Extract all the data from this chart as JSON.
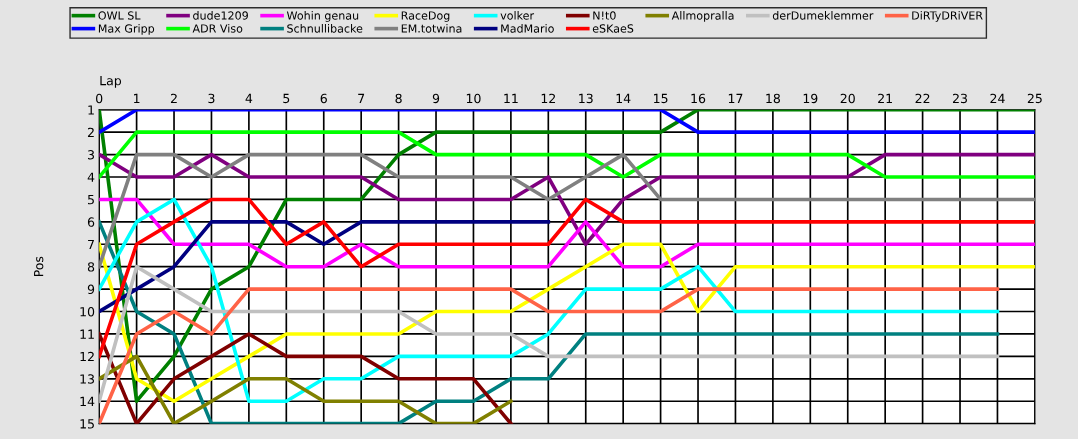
{
  "chart_data": {
    "type": "line",
    "xlabel": "Lap",
    "ylabel": "Pos",
    "x": [
      0,
      1,
      2,
      3,
      4,
      5,
      6,
      7,
      8,
      9,
      10,
      11,
      12,
      13,
      14,
      15,
      16,
      17,
      18,
      19,
      20,
      21,
      22,
      23,
      24,
      25
    ],
    "xlim": [
      0,
      25
    ],
    "xticks": [
      0,
      1,
      2,
      3,
      4,
      5,
      6,
      7,
      8,
      9,
      10,
      11,
      12,
      13,
      14,
      15,
      16,
      17,
      18,
      19,
      20,
      21,
      22,
      23,
      24,
      25
    ],
    "ylim": [
      15,
      1
    ],
    "yticks": [
      1,
      2,
      3,
      4,
      5,
      6,
      7,
      8,
      9,
      10,
      11,
      12,
      13,
      14,
      15
    ],
    "grid": true,
    "legend": "top",
    "marker": "none",
    "line_style": "solid",
    "series": [
      {
        "name": "OWL SL",
        "color": "#008000",
        "values": [
          1,
          14,
          12,
          9,
          8,
          5,
          5,
          5,
          3,
          2,
          2,
          2,
          2,
          2,
          2,
          2,
          1,
          1,
          1,
          1,
          1,
          1,
          1,
          1,
          1,
          1
        ]
      },
      {
        "name": "Max Gripp",
        "color": "#0000ff",
        "values": [
          2,
          1,
          1,
          1,
          1,
          1,
          1,
          1,
          1,
          1,
          1,
          1,
          1,
          1,
          1,
          1,
          2,
          2,
          2,
          2,
          2,
          2,
          2,
          2,
          2,
          2
        ]
      },
      {
        "name": "dude1209",
        "color": "#800080",
        "values": [
          3,
          4,
          4,
          3,
          4,
          4,
          4,
          4,
          5,
          5,
          5,
          5,
          4,
          7,
          5,
          4,
          4,
          4,
          4,
          4,
          4,
          3,
          3,
          3,
          3,
          3
        ]
      },
      {
        "name": "ADR Viso",
        "color": "#00ff00",
        "values": [
          4,
          2,
          2,
          2,
          2,
          2,
          2,
          2,
          2,
          3,
          3,
          3,
          3,
          3,
          4,
          3,
          3,
          3,
          3,
          3,
          3,
          4,
          4,
          4,
          4,
          4
        ]
      },
      {
        "name": "Wohin genau",
        "color": "#ff00ff",
        "values": [
          5,
          5,
          7,
          7,
          7,
          8,
          8,
          7,
          8,
          8,
          8,
          8,
          8,
          6,
          8,
          8,
          7,
          7,
          7,
          7,
          7,
          7,
          7,
          7,
          7,
          7
        ]
      },
      {
        "name": "Schnullibacke",
        "color": "#008080",
        "values": [
          6,
          10,
          11,
          15,
          15,
          15,
          15,
          15,
          15,
          14,
          14,
          13,
          13,
          11,
          11,
          11,
          11,
          11,
          11,
          11,
          11,
          11,
          11,
          11,
          11,
          null
        ]
      },
      {
        "name": "RaceDog",
        "color": "#ffff00",
        "values": [
          7,
          13,
          14,
          13,
          12,
          11,
          11,
          11,
          11,
          10,
          10,
          10,
          9,
          8,
          7,
          7,
          10,
          8,
          8,
          8,
          8,
          8,
          8,
          8,
          8,
          8
        ]
      },
      {
        "name": "EM.totwina",
        "color": "#808080",
        "values": [
          8,
          3,
          3,
          4,
          3,
          3,
          3,
          3,
          4,
          4,
          4,
          4,
          5,
          4,
          3,
          5,
          5,
          5,
          5,
          5,
          5,
          5,
          5,
          5,
          5,
          5
        ]
      },
      {
        "name": "volker",
        "color": "#00ffff",
        "values": [
          9,
          6,
          5,
          8,
          14,
          14,
          13,
          13,
          12,
          12,
          12,
          12,
          11,
          9,
          9,
          9,
          8,
          10,
          10,
          10,
          10,
          10,
          10,
          10,
          10,
          null
        ]
      },
      {
        "name": "MadMario",
        "color": "#000080",
        "values": [
          10,
          9,
          8,
          6,
          6,
          6,
          7,
          6,
          6,
          6,
          6,
          6,
          6,
          null,
          null,
          null,
          null,
          null,
          null,
          null,
          null,
          null,
          null,
          null,
          null,
          null
        ]
      },
      {
        "name": "N!t0",
        "color": "#800000",
        "values": [
          11,
          15,
          13,
          12,
          11,
          12,
          12,
          12,
          13,
          13,
          13,
          15,
          null,
          null,
          null,
          null,
          null,
          null,
          null,
          null,
          null,
          null,
          null,
          null,
          null,
          null
        ]
      },
      {
        "name": "eSKaeS",
        "color": "#ff0000",
        "values": [
          12,
          7,
          6,
          5,
          5,
          7,
          6,
          8,
          7,
          7,
          7,
          7,
          7,
          5,
          6,
          6,
          6,
          6,
          6,
          6,
          6,
          6,
          6,
          6,
          6,
          6
        ]
      },
      {
        "name": "Allmopralla",
        "color": "#808000",
        "values": [
          13,
          12,
          15,
          14,
          13,
          13,
          14,
          14,
          14,
          15,
          15,
          14,
          null,
          null,
          null,
          null,
          null,
          null,
          null,
          null,
          null,
          null,
          null,
          null,
          null,
          null
        ]
      },
      {
        "name": "derDumeklemmer",
        "color": "#c0c0c0",
        "values": [
          14,
          8,
          9,
          10,
          10,
          10,
          10,
          10,
          10,
          11,
          11,
          11,
          12,
          12,
          12,
          12,
          12,
          12,
          12,
          12,
          12,
          12,
          12,
          12,
          12,
          null
        ]
      },
      {
        "name": "DiRTyDRiVER",
        "color": "#ff6347",
        "values": [
          15,
          11,
          10,
          11,
          9,
          9,
          9,
          9,
          9,
          9,
          9,
          9,
          10,
          10,
          10,
          10,
          9,
          9,
          9,
          9,
          9,
          9,
          9,
          9,
          9,
          null
        ]
      }
    ]
  }
}
